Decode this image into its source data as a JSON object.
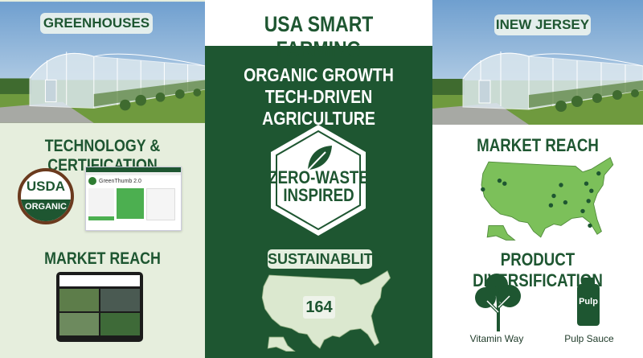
{
  "header": {
    "title": "USA SMART FARMING"
  },
  "left": {
    "photo_label": "GREENHOUSES",
    "tech_heading": "TECHNOLOGY & CERTIFICATION",
    "usda_seal": {
      "line1": "USDA",
      "line2": "ORGANIC"
    },
    "app_card": {
      "title": "GreenThumb 2.0"
    },
    "market_heading": "MARKET REACH"
  },
  "center": {
    "subtitle_line1": "ORGANIC GROWTH",
    "subtitle_line2": "TECH-DRIVEN AGRICULTURE",
    "badge": {
      "line1": "ZERO-WASTE",
      "line2": "INSPIRED",
      "icon": "leaf-icon"
    },
    "sustainability_label": "SUSTAINABLITY",
    "map_count": "164"
  },
  "right": {
    "photo_label": "INEW JERSEY",
    "market_heading": "MARKET REACH",
    "diversification_heading": "PRODUCT DIVERSIFICATION",
    "products": [
      {
        "label": "Vitamin Way",
        "icon": "leafy-greens-icon"
      },
      {
        "label": "Pulp Sauce",
        "icon": "bottle-icon",
        "bottle_text": "Pulp"
      }
    ]
  },
  "colors": {
    "brand_green": "#1e5631",
    "map_green": "#7cc05a",
    "pale_bg": "#e6eedd",
    "usda_brown": "#6b3a1e"
  }
}
